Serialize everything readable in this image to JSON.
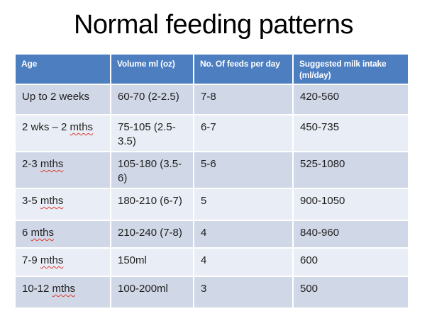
{
  "title": "Normal feeding patterns",
  "colors": {
    "header_bg": "#4d7ec0",
    "band_dark": "#d0d7e7",
    "band_light": "#e9edf5",
    "header_text": "#ffffff",
    "body_text": "#1f1f1f",
    "squiggle": "#e03a2f",
    "slide_bg": "#ffffff"
  },
  "table": {
    "columns": [
      "Age",
      "Volume ml (oz)",
      "No. Of feeds per day",
      "Suggested milk intake (ml/day)"
    ],
    "rows": [
      {
        "age": "Up to 2 weeks",
        "volume": "60-70 (2-2.5)",
        "feeds": "7-8",
        "intake": "420-560",
        "squiggle": ""
      },
      {
        "age": "2 wks – 2 mths",
        "volume": "75-105 (2.5-3.5)",
        "feeds": "6-7",
        "intake": "450-735",
        "squiggle": "mths"
      },
      {
        "age": "2-3 mths",
        "volume": "105-180 (3.5-6)",
        "feeds": "5-6",
        "intake": "525-1080",
        "squiggle": "mths"
      },
      {
        "age": "3-5 mths",
        "volume": "180-210 (6-7)",
        "feeds": "5",
        "intake": "900-1050",
        "squiggle": "mths"
      },
      {
        "age": "6 mths",
        "volume": "210-240 (7-8)",
        "feeds": "4",
        "intake": "840-960",
        "squiggle": "mths"
      },
      {
        "age": "7-9 mths",
        "volume": "150ml",
        "feeds": "4",
        "intake": "600",
        "squiggle": "mths"
      },
      {
        "age": "10-12 mths",
        "volume": "100-200ml",
        "feeds": "3",
        "intake": "500",
        "squiggle": "mths"
      }
    ]
  }
}
